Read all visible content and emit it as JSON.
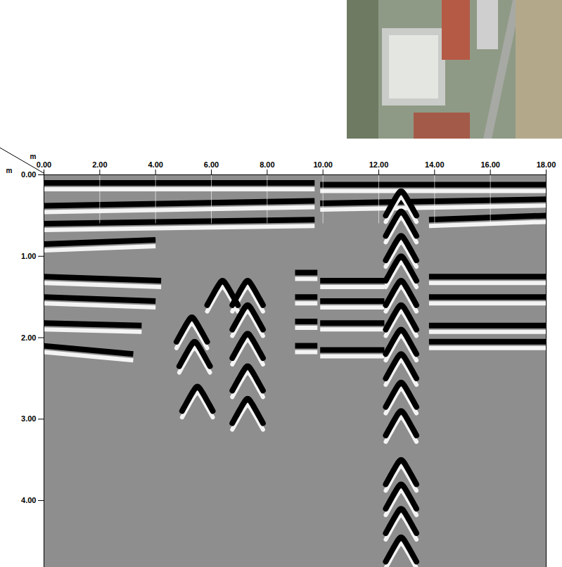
{
  "chart_data": {
    "type": "radargram",
    "x_label": "m",
    "y_label": "m",
    "xlim": [
      0,
      18
    ],
    "xticks": [
      {
        "value": 0,
        "label": "0.00"
      },
      {
        "value": 2,
        "label": "2.00"
      },
      {
        "value": 4,
        "label": "4.00"
      },
      {
        "value": 6,
        "label": "6.00"
      },
      {
        "value": 8,
        "label": "8.00"
      },
      {
        "value": 10,
        "label": "10.00"
      },
      {
        "value": 12,
        "label": "12.00"
      },
      {
        "value": 14,
        "label": "14.00"
      },
      {
        "value": 16,
        "label": "16.00"
      },
      {
        "value": 18,
        "label": "18.00"
      }
    ],
    "ylim": [
      0,
      4.82
    ],
    "yticks": [
      {
        "value": 0,
        "label": "0.00"
      },
      {
        "value": 1,
        "label": "1.00"
      },
      {
        "value": 2,
        "label": "2.00"
      },
      {
        "value": 3,
        "label": "3.00"
      },
      {
        "value": 4,
        "label": "4.00"
      }
    ],
    "reflectors": [
      {
        "x": [
          0,
          9.7
        ],
        "depth": [
          0.1,
          0.1
        ]
      },
      {
        "x": [
          0,
          9.7
        ],
        "depth": [
          0.38,
          0.32
        ]
      },
      {
        "x": [
          0,
          9.7
        ],
        "depth": [
          0.6,
          0.55
        ]
      },
      {
        "x": [
          0,
          4.0
        ],
        "depth": [
          0.85,
          0.8
        ]
      },
      {
        "x": [
          0,
          4.2
        ],
        "depth": [
          1.25,
          1.3
        ]
      },
      {
        "x": [
          0,
          4.0
        ],
        "depth": [
          1.5,
          1.55
        ]
      },
      {
        "x": [
          0,
          3.5
        ],
        "depth": [
          1.82,
          1.85
        ]
      },
      {
        "x": [
          0,
          3.2
        ],
        "depth": [
          2.1,
          2.2
        ]
      },
      {
        "x": [
          9.9,
          18
        ],
        "depth": [
          0.12,
          0.12
        ]
      },
      {
        "x": [
          9.9,
          18
        ],
        "depth": [
          0.35,
          0.3
        ]
      },
      {
        "x": [
          9.9,
          12.2
        ],
        "depth": [
          1.3,
          1.3
        ]
      },
      {
        "x": [
          9.9,
          12.2
        ],
        "depth": [
          1.55,
          1.55
        ]
      },
      {
        "x": [
          9.9,
          12.2
        ],
        "depth": [
          1.82,
          1.82
        ]
      },
      {
        "x": [
          9.9,
          12.2
        ],
        "depth": [
          2.15,
          2.15
        ]
      },
      {
        "x": [
          13.8,
          18
        ],
        "depth": [
          0.55,
          0.5
        ]
      },
      {
        "x": [
          13.8,
          18
        ],
        "depth": [
          1.25,
          1.25
        ]
      },
      {
        "x": [
          13.8,
          18
        ],
        "depth": [
          1.5,
          1.5
        ]
      },
      {
        "x": [
          13.8,
          18
        ],
        "depth": [
          1.85,
          1.85
        ]
      },
      {
        "x": [
          13.8,
          18
        ],
        "depth": [
          2.05,
          2.05
        ]
      },
      {
        "x": [
          9.0,
          9.8
        ],
        "depth": [
          1.2,
          1.2
        ]
      },
      {
        "x": [
          9.0,
          9.8
        ],
        "depth": [
          1.5,
          1.5
        ]
      },
      {
        "x": [
          9.0,
          9.8
        ],
        "depth": [
          1.8,
          1.8
        ]
      },
      {
        "x": [
          9.0,
          9.8
        ],
        "depth": [
          2.1,
          2.1
        ]
      }
    ],
    "hyperbolas": [
      {
        "x": 5.3,
        "depth": 1.75
      },
      {
        "x": 5.4,
        "depth": 2.05
      },
      {
        "x": 5.5,
        "depth": 2.6
      },
      {
        "x": 6.4,
        "depth": 1.3
      },
      {
        "x": 7.3,
        "depth": 1.3
      },
      {
        "x": 7.3,
        "depth": 1.6
      },
      {
        "x": 7.3,
        "depth": 1.95
      },
      {
        "x": 7.3,
        "depth": 2.35
      },
      {
        "x": 7.3,
        "depth": 2.75
      },
      {
        "x": 12.8,
        "depth": 0.2
      },
      {
        "x": 12.8,
        "depth": 0.45
      },
      {
        "x": 12.8,
        "depth": 0.75
      },
      {
        "x": 12.8,
        "depth": 1.0
      },
      {
        "x": 12.8,
        "depth": 1.3
      },
      {
        "x": 12.8,
        "depth": 1.6
      },
      {
        "x": 12.8,
        "depth": 1.9
      },
      {
        "x": 12.8,
        "depth": 2.2
      },
      {
        "x": 12.8,
        "depth": 2.55
      },
      {
        "x": 12.8,
        "depth": 2.9
      },
      {
        "x": 12.8,
        "depth": 3.5
      },
      {
        "x": 12.8,
        "depth": 3.8
      },
      {
        "x": 12.8,
        "depth": 4.1
      },
      {
        "x": 12.8,
        "depth": 4.45
      }
    ]
  }
}
